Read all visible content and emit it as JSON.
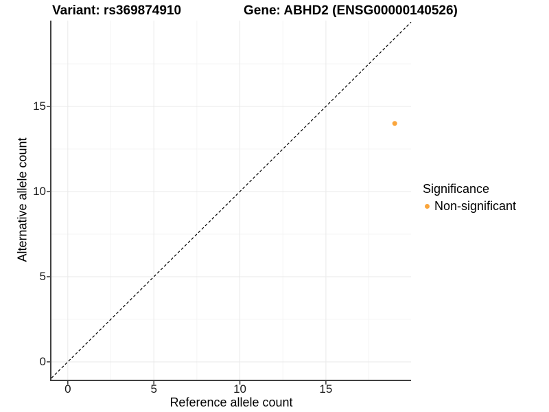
{
  "titles": {
    "variant": "Variant: rs369874910",
    "gene": "Gene: ABHD2 (ENSG00000140526)"
  },
  "chart_data": {
    "type": "scatter",
    "xlabel": "Reference allele count",
    "ylabel": "Alternative allele count",
    "xlim": [
      -0.95,
      19.95
    ],
    "ylim": [
      -1.05,
      20.04
    ],
    "xticks": [
      0,
      5,
      10,
      15
    ],
    "yticks": [
      0,
      5,
      10,
      15
    ],
    "x_minor": [
      2.5,
      7.5,
      12.5,
      17.5
    ],
    "y_minor": [
      2.5,
      7.5,
      12.5,
      17.5
    ],
    "grid": true,
    "identity_line": {
      "slope": 1,
      "intercept": 0,
      "style": "dashed"
    },
    "points": [
      {
        "x": 19,
        "y": 14,
        "series": "Non-significant"
      }
    ],
    "legend": {
      "title": "Significance",
      "position": "right",
      "items": [
        {
          "label": "Non-significant",
          "color": "#FAA53C"
        }
      ]
    }
  },
  "colors": {
    "point": "#FAA53C",
    "grid_major": "#E9E9E9",
    "grid_minor": "#F4F4F4",
    "axis_line": "#404040",
    "tick_mark": "#333333",
    "identity_line": "#000000"
  }
}
